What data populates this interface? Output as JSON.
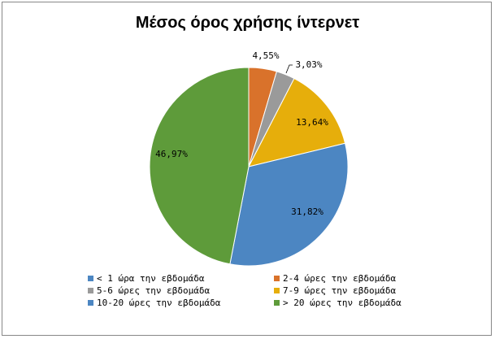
{
  "chart_data": {
    "type": "pie",
    "title": "Μέσος όρος χρήσης ίντερνετ",
    "slices": [
      {
        "name": "2-4 ώρες την εβδομάδα",
        "value": 4.55,
        "label": "4,55%",
        "color": "#D9722B"
      },
      {
        "name": "5-6 ώρες την εβδομάδα",
        "value": 3.03,
        "label": "3,03%",
        "color": "#9A9A9A"
      },
      {
        "name": "7-9 ώρες την εβδομάδα",
        "value": 13.64,
        "label": "13,64%",
        "color": "#E6AE0B"
      },
      {
        "name": "10-20 ώρες την εβδομάδα",
        "value": 31.82,
        "label": "31,82%",
        "color": "#4C86C2"
      },
      {
        "name": "> 20 ώρες την εβδομάδα",
        "value": 46.97,
        "label": "46,97%",
        "color": "#5E9B3A"
      },
      {
        "name": "< 1 ώρα την εβδομάδα",
        "value": 0,
        "label": "",
        "color": "#4C86C2"
      }
    ],
    "legend": [
      {
        "label": "< 1 ώρα την εβδομάδα",
        "color": "#4C86C2"
      },
      {
        "label": "2-4 ώρες την εβδομάδα",
        "color": "#D9722B"
      },
      {
        "label": "5-6 ώρες την εβδομάδα",
        "color": "#9A9A9A"
      },
      {
        "label": "7-9 ώρες την εβδομάδα",
        "color": "#E6AE0B"
      },
      {
        "label": "10-20 ώρες την εβδομάδα",
        "color": "#4C86C2"
      },
      {
        "label": "> 20 ώρες την εβδομάδα",
        "color": "#5E9B3A"
      }
    ],
    "legend_position": "bottom"
  }
}
